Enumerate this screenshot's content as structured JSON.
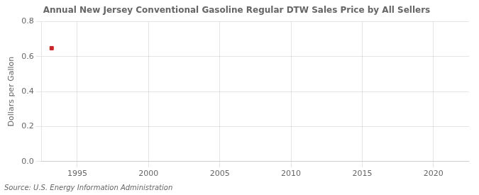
{
  "chart_data": {
    "type": "scatter",
    "title": "Annual New Jersey Conventional Gasoline Regular DTW Sales Price by All Sellers",
    "y_label": "Dollars per Gallon",
    "source": "Source: U.S. Energy Information Administration",
    "x": [
      1993.2
    ],
    "values": [
      0.648
    ],
    "color": "#cc2222",
    "marker": "square",
    "xlim": [
      1992.5,
      2022.5
    ],
    "xticks": [
      1995,
      2000,
      2005,
      2010,
      2015,
      2020
    ],
    "ylim": [
      0.0,
      0.8
    ],
    "yticks": [
      {
        "value": 0.0,
        "label": "0.0"
      },
      0.2,
      0.4,
      0.6,
      0.8
    ],
    "grid": true
  }
}
